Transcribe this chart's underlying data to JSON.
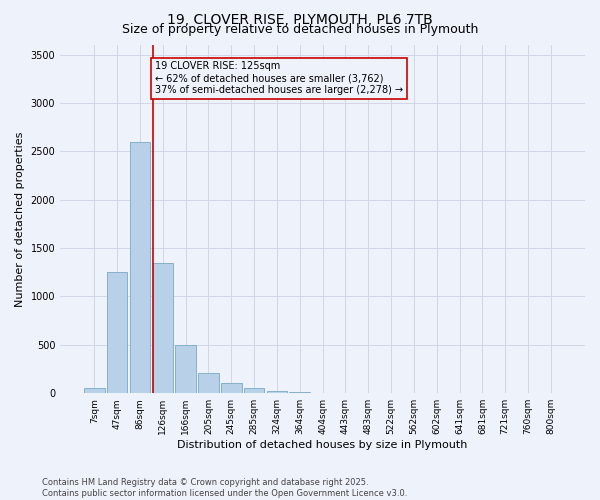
{
  "title": "19, CLOVER RISE, PLYMOUTH, PL6 7TB",
  "subtitle": "Size of property relative to detached houses in Plymouth",
  "xlabel": "Distribution of detached houses by size in Plymouth",
  "ylabel": "Number of detached properties",
  "categories": [
    "7sqm",
    "47sqm",
    "86sqm",
    "126sqm",
    "166sqm",
    "205sqm",
    "245sqm",
    "285sqm",
    "324sqm",
    "364sqm",
    "404sqm",
    "443sqm",
    "483sqm",
    "522sqm",
    "562sqm",
    "602sqm",
    "641sqm",
    "681sqm",
    "721sqm",
    "760sqm",
    "800sqm"
  ],
  "values": [
    50,
    1250,
    2600,
    1350,
    500,
    210,
    110,
    50,
    20,
    10,
    5,
    5,
    5,
    0,
    0,
    0,
    0,
    0,
    0,
    0,
    0
  ],
  "bar_color": "#b8d0e8",
  "bar_edge_color": "#7aa8c8",
  "vline_color": "#cc0000",
  "annotation_box_text": "19 CLOVER RISE: 125sqm\n← 62% of detached houses are smaller (3,762)\n37% of semi-detached houses are larger (2,278) →",
  "annotation_box_color": "#cc0000",
  "background_color": "#eef2fa",
  "grid_color": "#d0d8e8",
  "ylim": [
    0,
    3600
  ],
  "yticks": [
    0,
    500,
    1000,
    1500,
    2000,
    2500,
    3000,
    3500
  ],
  "footer": "Contains HM Land Registry data © Crown copyright and database right 2025.\nContains public sector information licensed under the Open Government Licence v3.0.",
  "title_fontsize": 10,
  "subtitle_fontsize": 9,
  "ylabel_fontsize": 8,
  "xlabel_fontsize": 8,
  "tick_fontsize": 6.5,
  "annotation_fontsize": 7,
  "footer_fontsize": 6
}
